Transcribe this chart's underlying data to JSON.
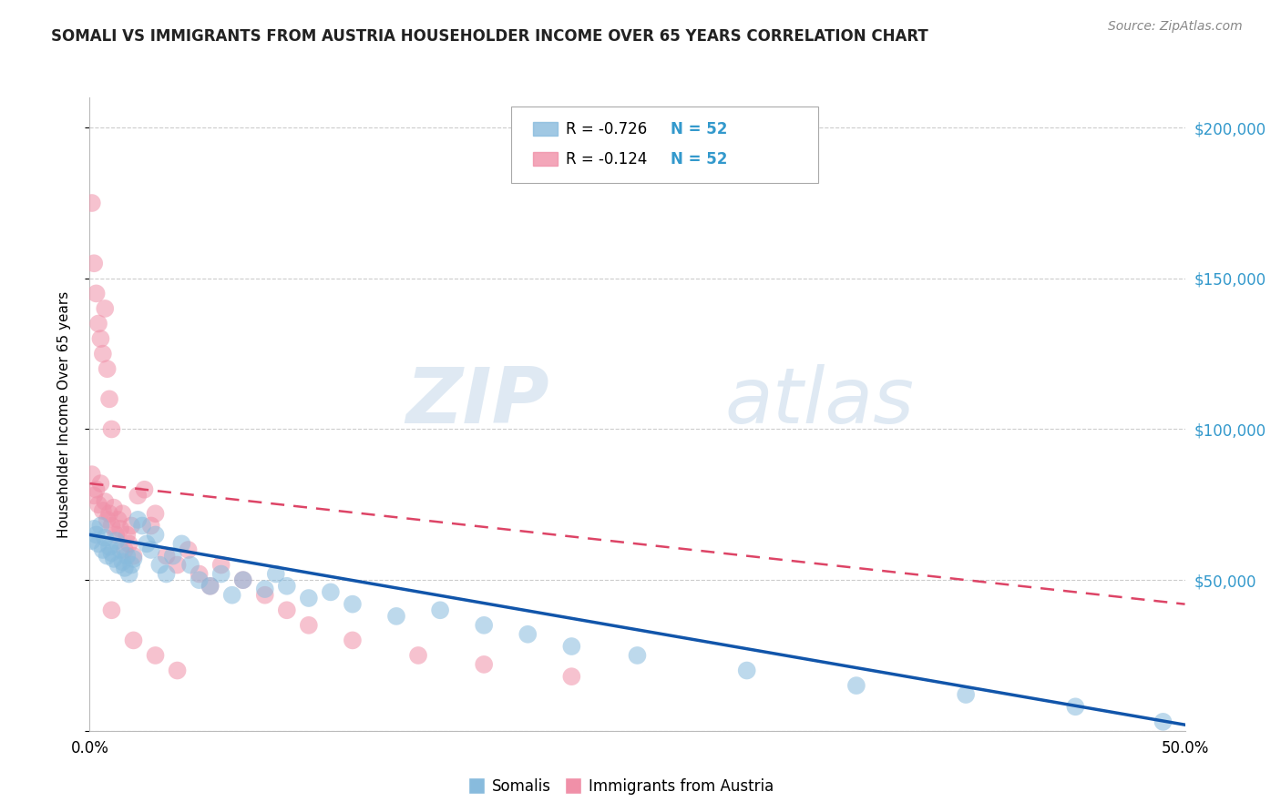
{
  "title": "SOMALI VS IMMIGRANTS FROM AUSTRIA HOUSEHOLDER INCOME OVER 65 YEARS CORRELATION CHART",
  "source": "Source: ZipAtlas.com",
  "ylabel": "Householder Income Over 65 years",
  "xlim": [
    0.0,
    0.5
  ],
  "ylim": [
    0,
    210000
  ],
  "yticks": [
    0,
    50000,
    100000,
    150000,
    200000
  ],
  "background_color": "#ffffff",
  "watermark_zip": "ZIP",
  "watermark_atlas": "atlas",
  "legend_r_somali": "R = -0.726",
  "legend_n_somali": "N = 52",
  "legend_r_austria": "R = -0.124",
  "legend_n_austria": "N = 52",
  "somali_color": "#88bbdd",
  "austria_color": "#f090a8",
  "somali_line_color": "#1155aa",
  "austria_line_color": "#dd4466",
  "grid_color": "#cccccc",
  "right_axis_color": "#3399cc",
  "somali_x": [
    0.001,
    0.002,
    0.003,
    0.004,
    0.005,
    0.006,
    0.007,
    0.008,
    0.009,
    0.01,
    0.011,
    0.012,
    0.013,
    0.014,
    0.015,
    0.016,
    0.017,
    0.018,
    0.019,
    0.02,
    0.022,
    0.024,
    0.026,
    0.028,
    0.03,
    0.032,
    0.035,
    0.038,
    0.042,
    0.046,
    0.05,
    0.055,
    0.06,
    0.065,
    0.07,
    0.08,
    0.085,
    0.09,
    0.1,
    0.11,
    0.12,
    0.14,
    0.16,
    0.18,
    0.2,
    0.22,
    0.25,
    0.3,
    0.35,
    0.4,
    0.45,
    0.49
  ],
  "somali_y": [
    63000,
    67000,
    65000,
    62000,
    68000,
    60000,
    64000,
    58000,
    61000,
    59000,
    57000,
    63000,
    55000,
    60000,
    56000,
    54000,
    58000,
    52000,
    55000,
    57000,
    70000,
    68000,
    62000,
    60000,
    65000,
    55000,
    52000,
    58000,
    62000,
    55000,
    50000,
    48000,
    52000,
    45000,
    50000,
    47000,
    52000,
    48000,
    44000,
    46000,
    42000,
    38000,
    40000,
    35000,
    32000,
    28000,
    25000,
    20000,
    15000,
    12000,
    8000,
    3000
  ],
  "austria_x": [
    0.001,
    0.002,
    0.003,
    0.004,
    0.005,
    0.006,
    0.007,
    0.008,
    0.009,
    0.01,
    0.011,
    0.012,
    0.013,
    0.014,
    0.015,
    0.016,
    0.017,
    0.018,
    0.019,
    0.02,
    0.001,
    0.002,
    0.003,
    0.004,
    0.005,
    0.006,
    0.007,
    0.008,
    0.009,
    0.01,
    0.022,
    0.025,
    0.028,
    0.03,
    0.035,
    0.04,
    0.045,
    0.05,
    0.055,
    0.06,
    0.07,
    0.08,
    0.09,
    0.1,
    0.12,
    0.15,
    0.18,
    0.22,
    0.01,
    0.02,
    0.03,
    0.04
  ],
  "austria_y": [
    85000,
    78000,
    80000,
    75000,
    82000,
    73000,
    76000,
    70000,
    72000,
    68000,
    74000,
    65000,
    70000,
    67000,
    72000,
    60000,
    65000,
    62000,
    68000,
    58000,
    175000,
    155000,
    145000,
    135000,
    130000,
    125000,
    140000,
    120000,
    110000,
    100000,
    78000,
    80000,
    68000,
    72000,
    58000,
    55000,
    60000,
    52000,
    48000,
    55000,
    50000,
    45000,
    40000,
    35000,
    30000,
    25000,
    22000,
    18000,
    40000,
    30000,
    25000,
    20000
  ]
}
